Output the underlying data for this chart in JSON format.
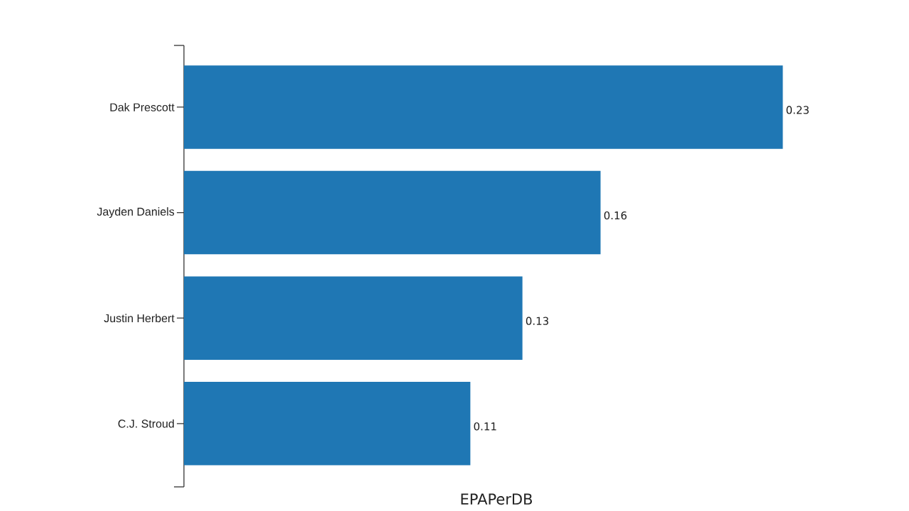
{
  "chart_data": {
    "type": "bar",
    "orientation": "horizontal",
    "categories": [
      "Dak Prescott",
      "Jayden Daniels",
      "Justin Herbert",
      "C.J. Stroud"
    ],
    "values": [
      0.23,
      0.16,
      0.13,
      0.11
    ],
    "color": "#1f77b4",
    "xlabel": "EPAPerDB",
    "tick_labels": "y",
    "data_labels": true
  }
}
